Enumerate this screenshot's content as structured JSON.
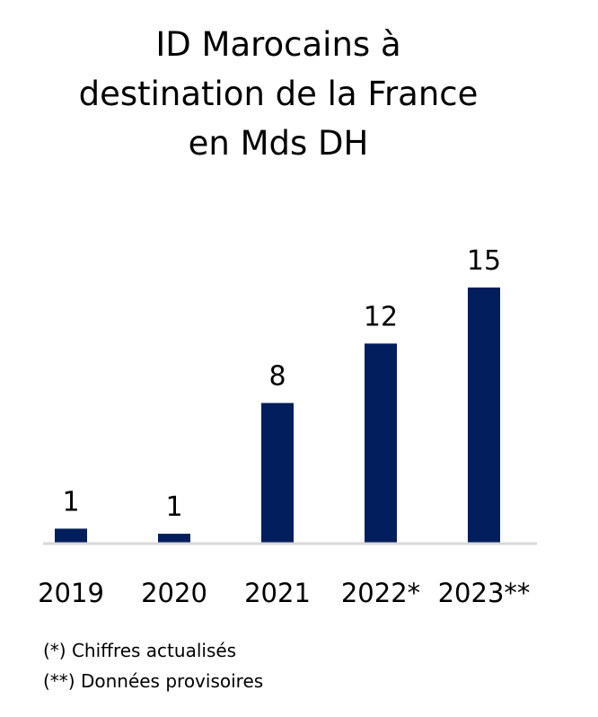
{
  "chart_data": {
    "type": "bar",
    "title_lines": [
      "ID Marocains à",
      "destination de la France",
      "en Mds DH"
    ],
    "categories": [
      "2019",
      "2020",
      "2021",
      "2022*",
      "2023**"
    ],
    "values": [
      0.8,
      0.5,
      8.2,
      11.7,
      15
    ],
    "data_labels": [
      "1",
      "1",
      "8",
      "12",
      "15"
    ],
    "xlabel": "",
    "ylabel": "",
    "ylim": [
      0,
      16
    ],
    "grid": false,
    "bar_color": "#021e5c",
    "axis_color": "#d9d9d9"
  },
  "notes": [
    "(*) Chiffres actualisés",
    "(**) Données provisoires"
  ]
}
